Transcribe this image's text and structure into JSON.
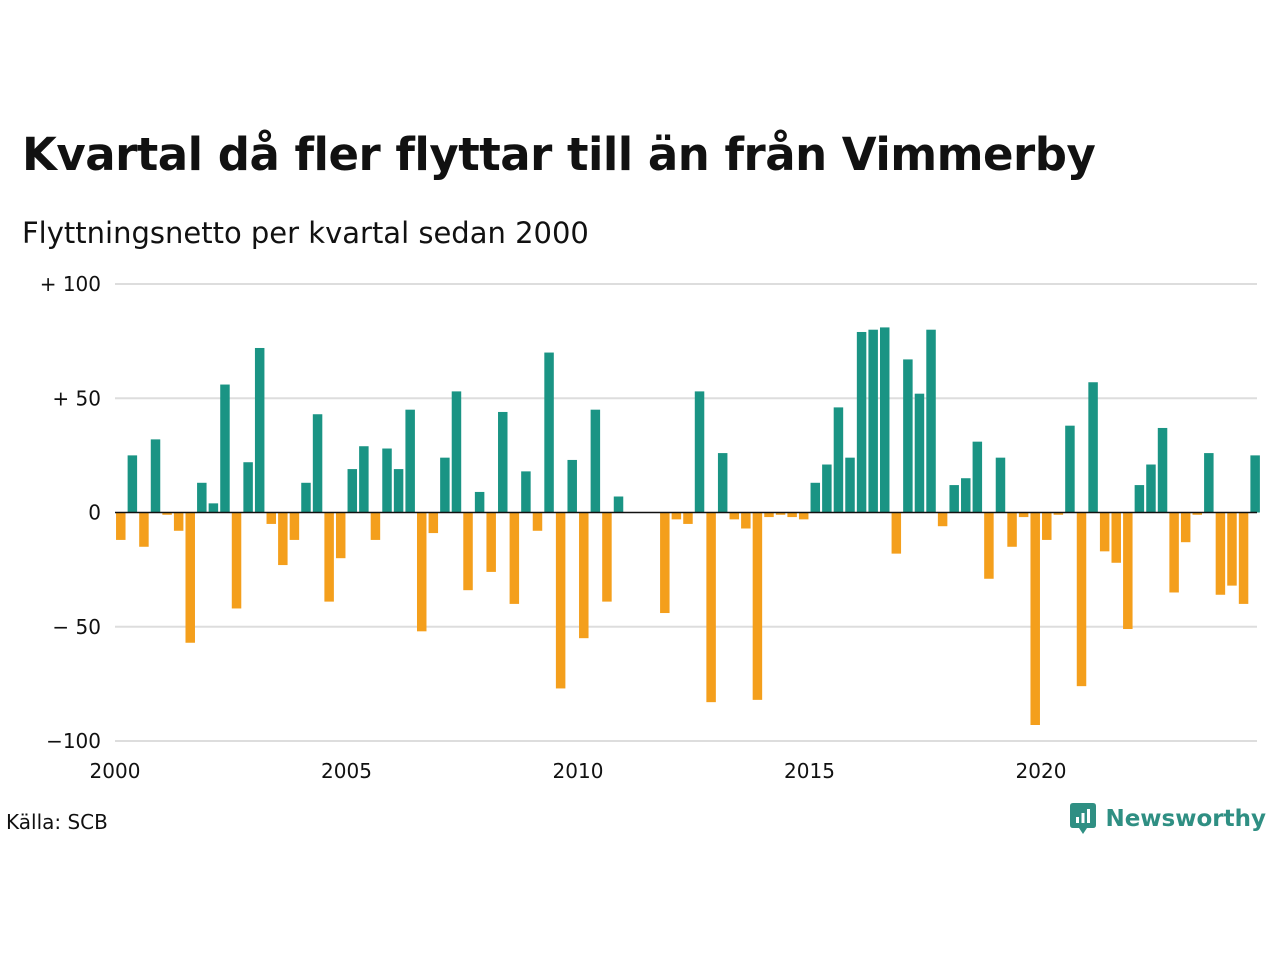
{
  "title": "Kvartal då fler flyttar till än från Vimmerby",
  "subtitle": "Flyttningsnetto per kvartal sedan 2000",
  "source": "Källa: SCB",
  "brand": "Newsworthy",
  "colors": {
    "positive": "#1a9484",
    "negative": "#f49f1c",
    "grid": "#dddddd",
    "brand": "#2f8f83"
  },
  "chart_data": {
    "type": "bar",
    "start_year": 2000,
    "quarters_per_year": 4,
    "ylim": [
      -100,
      100
    ],
    "yticks": [
      {
        "value": 100,
        "label": "+ 100"
      },
      {
        "value": 50,
        "label": "+  50"
      },
      {
        "value": 0,
        "label": "0"
      },
      {
        "value": -50,
        "label": "− 50"
      },
      {
        "value": -100,
        "label": "−100"
      }
    ],
    "xticks": [
      {
        "value": 2000,
        "label": "2000"
      },
      {
        "value": 2005,
        "label": "2005"
      },
      {
        "value": 2010,
        "label": "2010"
      },
      {
        "value": 2015,
        "label": "2015"
      },
      {
        "value": 2020,
        "label": "2020"
      }
    ],
    "values": [
      -12,
      25,
      -15,
      32,
      -1,
      -8,
      -57,
      13,
      4,
      56,
      -42,
      22,
      72,
      -5,
      -23,
      -12,
      13,
      43,
      -39,
      -20,
      19,
      29,
      -12,
      28,
      19,
      45,
      -52,
      -9,
      24,
      53,
      -34,
      9,
      -26,
      44,
      -40,
      18,
      -8,
      70,
      -77,
      23,
      -55,
      45,
      -39,
      7,
      0,
      0,
      0,
      -44,
      -3,
      -5,
      53,
      -83,
      26,
      -3,
      -7,
      -82,
      -2,
      -1,
      -2,
      -3,
      13,
      21,
      46,
      24,
      79,
      80,
      81,
      -18,
      67,
      52,
      80,
      -6,
      12,
      15,
      31,
      -29,
      24,
      -15,
      -2,
      -93,
      -12,
      -1,
      38,
      -76,
      57,
      -17,
      -22,
      -51,
      12,
      21,
      37,
      -35,
      -13,
      -1,
      26,
      -36,
      -32,
      -40,
      25
    ],
    "grid": true
  }
}
